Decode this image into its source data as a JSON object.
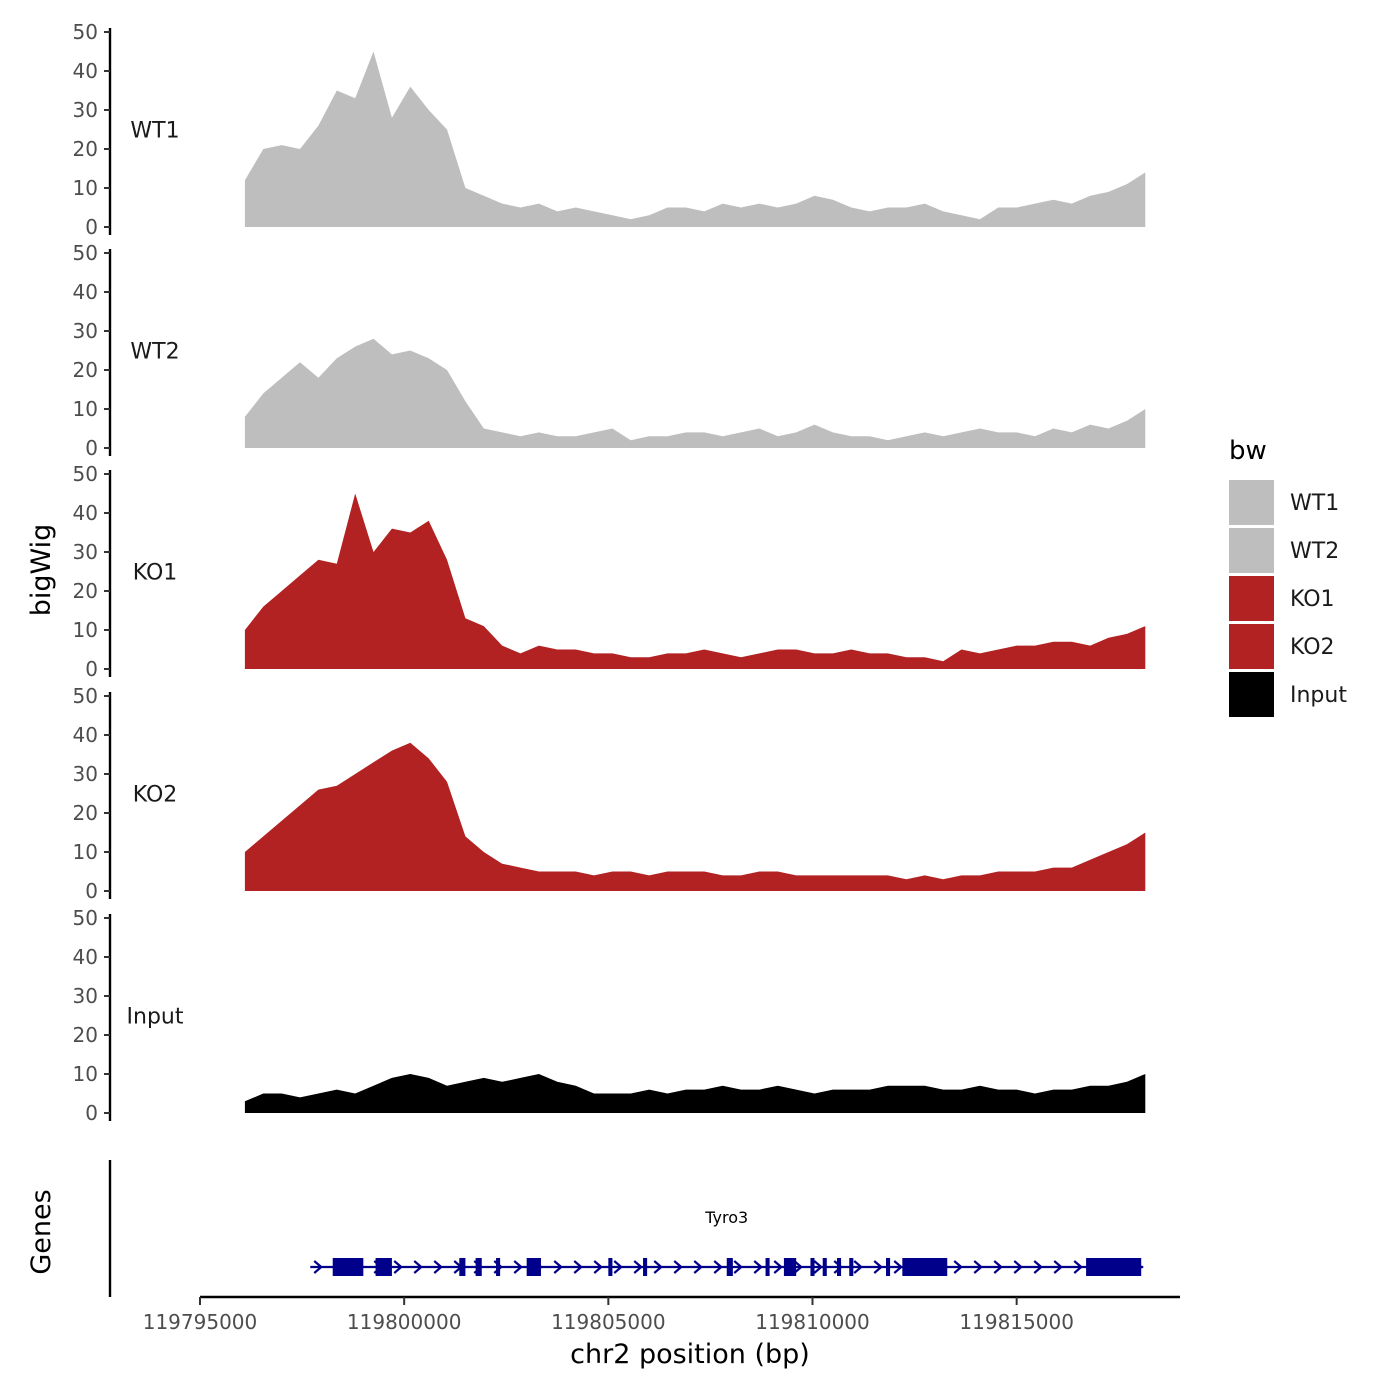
{
  "chart_data": {
    "type": "area",
    "title": "",
    "ylabel": "bigWig",
    "xlabel": "chr2 position (bp)",
    "genes_label": "Genes",
    "ylim": [
      0,
      50
    ],
    "y_ticks": [
      "0",
      "10",
      "20",
      "30",
      "40",
      "50"
    ],
    "y_tick_values": [
      0,
      10,
      20,
      30,
      40,
      50
    ],
    "xlim": [
      119795000,
      119819000
    ],
    "x_ticks": [
      "119795000",
      "119800000",
      "119805000",
      "119810000",
      "119815000"
    ],
    "x_tick_values": [
      119795000,
      119800000,
      119805000,
      119810000,
      119815000
    ],
    "x": [
      119796100,
      119796550,
      119797000,
      119797450,
      119797900,
      119798350,
      119798800,
      119799250,
      119799700,
      119800150,
      119800600,
      119801050,
      119801500,
      119801950,
      119802400,
      119802850,
      119803300,
      119803750,
      119804200,
      119804650,
      119805100,
      119805550,
      119806000,
      119806450,
      119806900,
      119807350,
      119807800,
      119808250,
      119808700,
      119809150,
      119809600,
      119810050,
      119810500,
      119810950,
      119811400,
      119811850,
      119812300,
      119812750,
      119813200,
      119813650,
      119814100,
      119814550,
      119815000,
      119815450,
      119815900,
      119816350,
      119816800,
      119817250,
      119817700,
      119818150
    ],
    "series": [
      {
        "name": "WT1",
        "color": "#bebebe",
        "values": [
          12,
          20,
          21,
          20,
          26,
          35,
          33,
          45,
          28,
          36,
          30,
          25,
          10,
          8,
          6,
          5,
          6,
          4,
          5,
          4,
          3,
          2,
          3,
          5,
          5,
          4,
          6,
          5,
          6,
          5,
          6,
          8,
          7,
          5,
          4,
          5,
          5,
          6,
          4,
          3,
          2,
          5,
          5,
          6,
          7,
          6,
          8,
          9,
          11,
          14
        ]
      },
      {
        "name": "WT2",
        "color": "#bebebe",
        "values": [
          8,
          14,
          18,
          22,
          18,
          23,
          26,
          28,
          24,
          25,
          23,
          20,
          12,
          5,
          4,
          3,
          4,
          3,
          3,
          4,
          5,
          2,
          3,
          3,
          4,
          4,
          3,
          4,
          5,
          3,
          4,
          6,
          4,
          3,
          3,
          2,
          3,
          4,
          3,
          4,
          5,
          4,
          4,
          3,
          5,
          4,
          6,
          5,
          7,
          10
        ]
      },
      {
        "name": "KO1",
        "color": "#b22222",
        "values": [
          10,
          16,
          20,
          24,
          28,
          27,
          45,
          30,
          36,
          35,
          38,
          28,
          13,
          11,
          6,
          4,
          6,
          5,
          5,
          4,
          4,
          3,
          3,
          4,
          4,
          5,
          4,
          3,
          4,
          5,
          5,
          4,
          4,
          5,
          4,
          4,
          3,
          3,
          2,
          5,
          4,
          5,
          6,
          6,
          7,
          7,
          6,
          8,
          9,
          11
        ]
      },
      {
        "name": "KO2",
        "color": "#b22222",
        "values": [
          10,
          14,
          18,
          22,
          26,
          27,
          30,
          33,
          36,
          38,
          34,
          28,
          14,
          10,
          7,
          6,
          5,
          5,
          5,
          4,
          5,
          5,
          4,
          5,
          5,
          5,
          4,
          4,
          5,
          5,
          4,
          4,
          4,
          4,
          4,
          4,
          3,
          4,
          3,
          4,
          4,
          5,
          5,
          5,
          6,
          6,
          8,
          10,
          12,
          15
        ]
      },
      {
        "name": "Input",
        "color": "#000000",
        "values": [
          3,
          5,
          5,
          4,
          5,
          6,
          5,
          7,
          9,
          10,
          9,
          7,
          8,
          9,
          8,
          9,
          10,
          8,
          7,
          5,
          5,
          5,
          6,
          5,
          6,
          6,
          7,
          6,
          6,
          7,
          6,
          5,
          6,
          6,
          6,
          7,
          7,
          7,
          6,
          6,
          7,
          6,
          6,
          5,
          6,
          6,
          7,
          7,
          8,
          10
        ]
      }
    ],
    "genes": [
      {
        "name": "Tyro3",
        "start": 119797700,
        "end": 119818100,
        "strand": "+",
        "exons": [
          [
            119798250,
            119799000
          ],
          [
            119799300,
            119799700
          ],
          [
            119801350,
            119801500
          ],
          [
            119801750,
            119801900
          ],
          [
            119802250,
            119802350
          ],
          [
            119803000,
            119803350
          ],
          [
            119805000,
            119805100
          ],
          [
            119805850,
            119805950
          ],
          [
            119807900,
            119808050
          ],
          [
            119808850,
            119808950
          ],
          [
            119809300,
            119809600
          ],
          [
            119809950,
            119810050
          ],
          [
            119810250,
            119810350
          ],
          [
            119810600,
            119810700
          ],
          [
            119810900,
            119811000
          ],
          [
            119811800,
            119811900
          ],
          [
            119812200,
            119813300
          ],
          [
            119816700,
            119818050
          ]
        ]
      }
    ],
    "legend": {
      "title": "bw",
      "entries": [
        "WT1",
        "WT2",
        "KO1",
        "KO2",
        "Input"
      ],
      "position": "right"
    },
    "gene_color": "#00008b"
  }
}
